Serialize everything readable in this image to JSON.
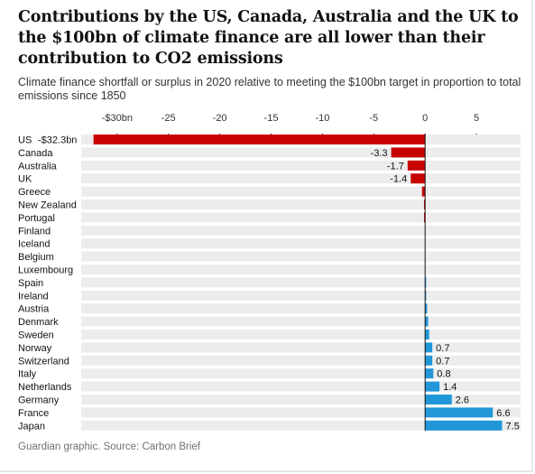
{
  "title": "Contributions by the US, Canada, Australia and the UK to the $100bn of climate finance are all lower than their contribution to CO2 emissions",
  "subtitle": "Climate finance shortfall or surplus in 2020 relative to meeting the $100bn target in proportion to total emissions since 1850",
  "footer": "Guardian graphic. Source: Carbon Brief",
  "colors": {
    "negative": "#c70000",
    "positive": "#2196d8",
    "track": "#ececec",
    "axis": "#121212"
  },
  "chart_data": {
    "type": "bar",
    "orientation": "horizontal",
    "xlim": [
      -33.5,
      9.3
    ],
    "xticks": [
      -30,
      -25,
      -20,
      -15,
      -10,
      -5,
      0,
      5
    ],
    "xtick_labels": [
      "-$30bn",
      "-25",
      "-20",
      "-15",
      "-10",
      "-5",
      "0",
      "5"
    ],
    "grid": false,
    "categories": [
      "US",
      "Canada",
      "Australia",
      "UK",
      "Greece",
      "New Zealand",
      "Portugal",
      "Finland",
      "Iceland",
      "Belgium",
      "Luxembourg",
      "Spain",
      "Ireland",
      "Austria",
      "Denmark",
      "Sweden",
      "Norway",
      "Switzerland",
      "Italy",
      "Netherlands",
      "Germany",
      "France",
      "Japan"
    ],
    "values": [
      -32.3,
      -3.3,
      -1.7,
      -1.4,
      -0.3,
      -0.1,
      -0.1,
      0.0,
      0.0,
      0.0,
      0.0,
      0.1,
      0.1,
      0.2,
      0.3,
      0.4,
      0.7,
      0.7,
      0.8,
      1.4,
      2.6,
      6.6,
      7.5
    ],
    "data_labels": [
      "-$32.3bn",
      "-3.3",
      "-1.7",
      "-1.4",
      "",
      "",
      "",
      "",
      "",
      "",
      "",
      "",
      "",
      "",
      "",
      "",
      "0.7",
      "0.7",
      "0.8",
      "1.4",
      "2.6",
      "6.6",
      "7.5"
    ]
  }
}
